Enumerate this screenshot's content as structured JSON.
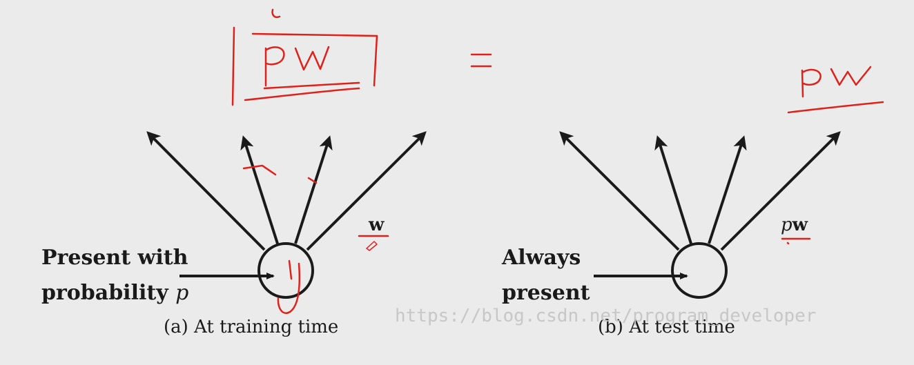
{
  "panel_a": {
    "label_line1": "Present with",
    "label_line2_prefix": "probability ",
    "label_line2_var": "p",
    "weight_label": "w",
    "caption": "(a) At training time"
  },
  "panel_b": {
    "label_line1": "Always",
    "label_line2": "present",
    "weight_label_var": "p",
    "weight_label_bold": "w",
    "caption": "(b) At test time"
  },
  "watermark": "https://blog.csdn.net/program_developer",
  "annotations": {
    "equals_sign": "=",
    "boxed_expression": "pw",
    "right_expression": "pw",
    "neuron_output_var": "y"
  },
  "colors": {
    "background": "#ebebeb",
    "ink": "#1a1a1a",
    "annotation_red": "#e0201a",
    "watermark": "#c4c4c4"
  }
}
